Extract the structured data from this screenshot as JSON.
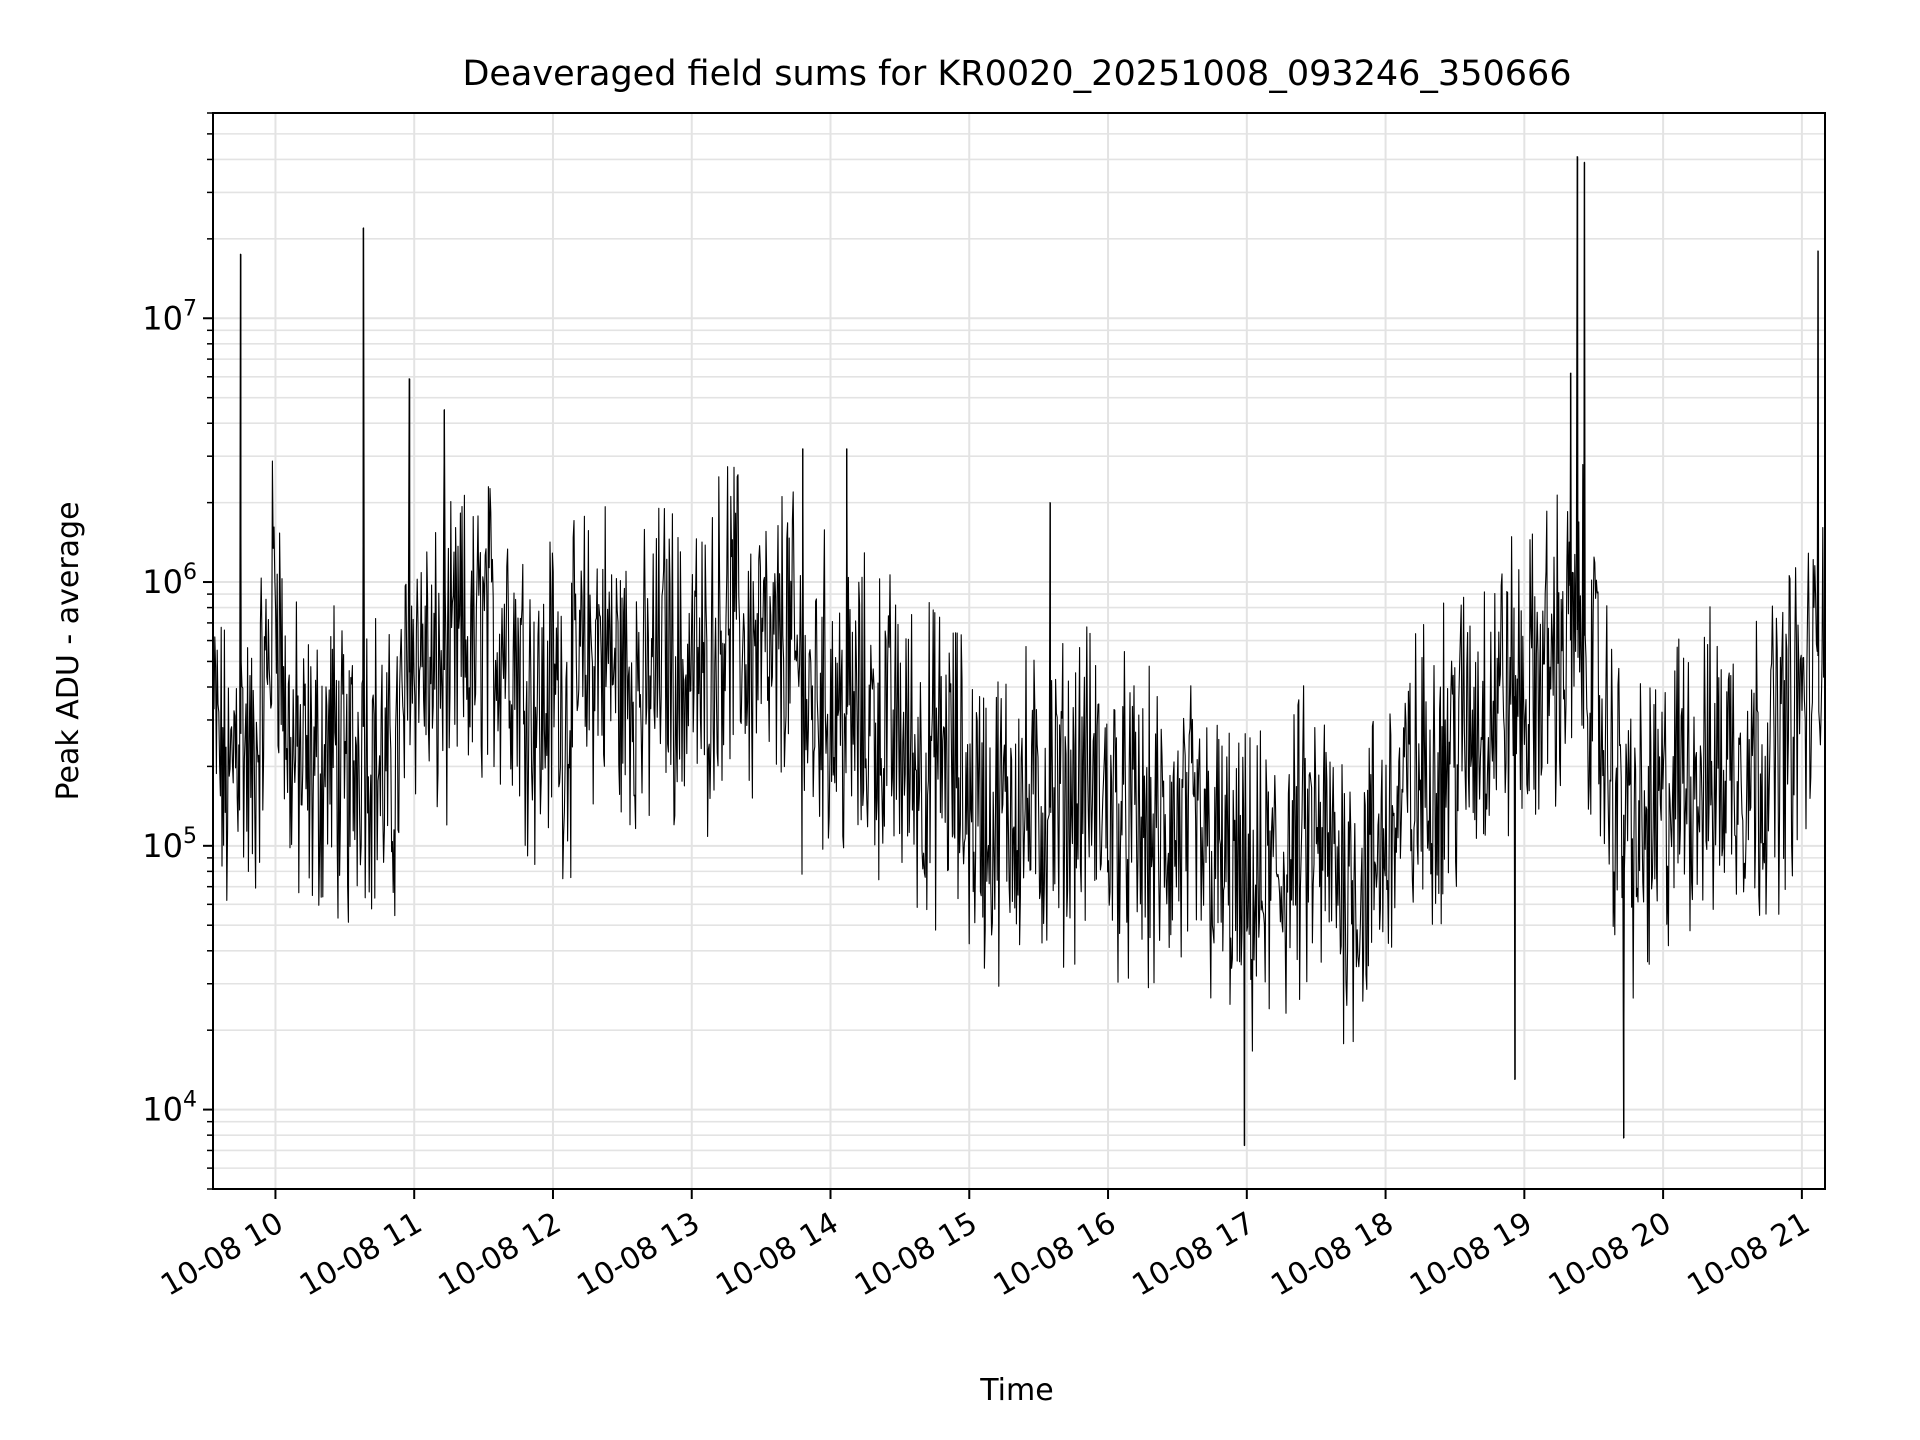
{
  "chart_data": {
    "type": "line",
    "title": "Deaveraged field sums for KR0020_20251008_093246_350666",
    "xlabel": "Time",
    "ylabel": "Peak ADU - average",
    "yscale": "log",
    "ylim": [
      5000,
      60000000
    ],
    "xlim": [
      "2025-10-08 09:33",
      "2025-10-08 21:10"
    ],
    "grid": true,
    "x_tick_labels": [
      "10-08 10",
      "10-08 11",
      "10-08 12",
      "10-08 13",
      "10-08 14",
      "10-08 15",
      "10-08 16",
      "10-08 17",
      "10-08 18",
      "10-08 19",
      "10-08 20",
      "10-08 21"
    ],
    "x_ticks": [
      "2025-10-08 10:00",
      "2025-10-08 11:00",
      "2025-10-08 12:00",
      "2025-10-08 13:00",
      "2025-10-08 14:00",
      "2025-10-08 15:00",
      "2025-10-08 16:00",
      "2025-10-08 17:00",
      "2025-10-08 18:00",
      "2025-10-08 19:00",
      "2025-10-08 20:00",
      "2025-10-08 21:00"
    ],
    "y_ticks": [
      10000,
      100000,
      1000000,
      10000000
    ],
    "y_tick_labels": [
      {
        "base": "10",
        "exp": "4"
      },
      {
        "base": "10",
        "exp": "5"
      },
      {
        "base": "10",
        "exp": "6"
      },
      {
        "base": "10",
        "exp": "7"
      }
    ],
    "line_color": "#000000",
    "series": [
      {
        "x": [
          "2025-10-08 09:33",
          "2025-10-08 09:37",
          "2025-10-08 09:40",
          "2025-10-08 09:43",
          "2025-10-08 09:46",
          "2025-10-08 09:50",
          "2025-10-08 09:53",
          "2025-10-08 09:56",
          "2025-10-08 10:00",
          "2025-10-08 10:05",
          "2025-10-08 10:10",
          "2025-10-08 10:15",
          "2025-10-08 10:20",
          "2025-10-08 10:25",
          "2025-10-08 10:30",
          "2025-10-08 10:35",
          "2025-10-08 10:37",
          "2025-10-08 10:40",
          "2025-10-08 10:45",
          "2025-10-08 10:50",
          "2025-10-08 10:55",
          "2025-10-08 11:00",
          "2025-10-08 11:05",
          "2025-10-08 11:08",
          "2025-10-08 11:12",
          "2025-10-08 11:15",
          "2025-10-08 11:20",
          "2025-10-08 11:25",
          "2025-10-08 11:30",
          "2025-10-08 11:35",
          "2025-10-08 11:40",
          "2025-10-08 11:45",
          "2025-10-08 11:50",
          "2025-10-08 11:55",
          "2025-10-08 12:00",
          "2025-10-08 12:05",
          "2025-10-08 12:10",
          "2025-10-08 12:15",
          "2025-10-08 12:20",
          "2025-10-08 12:25",
          "2025-10-08 12:30",
          "2025-10-08 12:35",
          "2025-10-08 12:40",
          "2025-10-08 12:45",
          "2025-10-08 12:50",
          "2025-10-08 12:55",
          "2025-10-08 13:00",
          "2025-10-08 13:05",
          "2025-10-08 13:10",
          "2025-10-08 13:15",
          "2025-10-08 13:20",
          "2025-10-08 13:25",
          "2025-10-08 13:30",
          "2025-10-08 13:35",
          "2025-10-08 13:40",
          "2025-10-08 13:45",
          "2025-10-08 13:50",
          "2025-10-08 13:55",
          "2025-10-08 14:00",
          "2025-10-08 14:10",
          "2025-10-08 14:20",
          "2025-10-08 14:30",
          "2025-10-08 14:40",
          "2025-10-08 14:50",
          "2025-10-08 15:00",
          "2025-10-08 15:10",
          "2025-10-08 15:20",
          "2025-10-08 15:30",
          "2025-10-08 15:40",
          "2025-10-08 15:50",
          "2025-10-08 16:00",
          "2025-10-08 16:10",
          "2025-10-08 16:20",
          "2025-10-08 16:30",
          "2025-10-08 16:40",
          "2025-10-08 16:50",
          "2025-10-08 17:00",
          "2025-10-08 17:10",
          "2025-10-08 17:20",
          "2025-10-08 17:30",
          "2025-10-08 17:40",
          "2025-10-08 17:50",
          "2025-10-08 18:00",
          "2025-10-08 18:10",
          "2025-10-08 18:20",
          "2025-10-08 18:30",
          "2025-10-08 18:40",
          "2025-10-08 18:50",
          "2025-10-08 19:00",
          "2025-10-08 19:10",
          "2025-10-08 19:20",
          "2025-10-08 19:25",
          "2025-10-08 19:30",
          "2025-10-08 19:40",
          "2025-10-08 19:45",
          "2025-10-08 19:50",
          "2025-10-08 20:00",
          "2025-10-08 20:10",
          "2025-10-08 20:20",
          "2025-10-08 20:30",
          "2025-10-08 20:40",
          "2025-10-08 20:50",
          "2025-10-08 21:00",
          "2025-10-08 21:05",
          "2025-10-08 21:08",
          "2025-10-08 21:10"
        ],
        "y": [
          300000,
          200000,
          140000,
          300000,
          250000,
          170000,
          300000,
          400000,
          1200000,
          250000,
          200000,
          180000,
          200000,
          250000,
          150000,
          220000,
          300000,
          250000,
          200000,
          150000,
          300000,
          600000,
          500000,
          350000,
          500000,
          400000,
          600000,
          500000,
          700000,
          600000,
          700000,
          500000,
          400000,
          300000,
          450000,
          300000,
          400000,
          500000,
          600000,
          500000,
          400000,
          450000,
          350000,
          500000,
          600000,
          400000,
          500000,
          400000,
          600000,
          800000,
          700000,
          500000,
          600000,
          400000,
          700000,
          500000,
          300000,
          400000,
          350000,
          300000,
          300000,
          250000,
          200000,
          220000,
          150000,
          120000,
          150000,
          130000,
          150000,
          180000,
          140000,
          120000,
          100000,
          110000,
          100000,
          80000,
          60000,
          70000,
          90000,
          100000,
          80000,
          70000,
          110000,
          150000,
          200000,
          250000,
          300000,
          400000,
          350000,
          500000,
          600000,
          700000,
          400000,
          150000,
          120000,
          100000,
          130000,
          200000,
          180000,
          220000,
          200000,
          250000,
          350000,
          400000,
          600000,
          800000
        ]
      }
    ],
    "spikes": [
      {
        "x": "2025-10-08 09:45",
        "y": 17500000
      },
      {
        "x": "2025-10-08 10:38",
        "y": 22000000
      },
      {
        "x": "2025-10-08 10:58",
        "y": 5900000
      },
      {
        "x": "2025-10-08 11:13",
        "y": 4500000
      },
      {
        "x": "2025-10-08 13:48",
        "y": 3200000
      },
      {
        "x": "2025-10-08 14:07",
        "y": 3200000
      },
      {
        "x": "2025-10-08 15:35",
        "y": 2000000
      },
      {
        "x": "2025-10-08 16:59",
        "y": 7300
      },
      {
        "x": "2025-10-08 18:56",
        "y": 13000
      },
      {
        "x": "2025-10-08 19:20",
        "y": 6200000
      },
      {
        "x": "2025-10-08 19:23",
        "y": 41000000
      },
      {
        "x": "2025-10-08 19:26",
        "y": 39000000
      },
      {
        "x": "2025-10-08 19:43",
        "y": 7800
      },
      {
        "x": "2025-10-08 21:07",
        "y": 18000000
      }
    ]
  }
}
